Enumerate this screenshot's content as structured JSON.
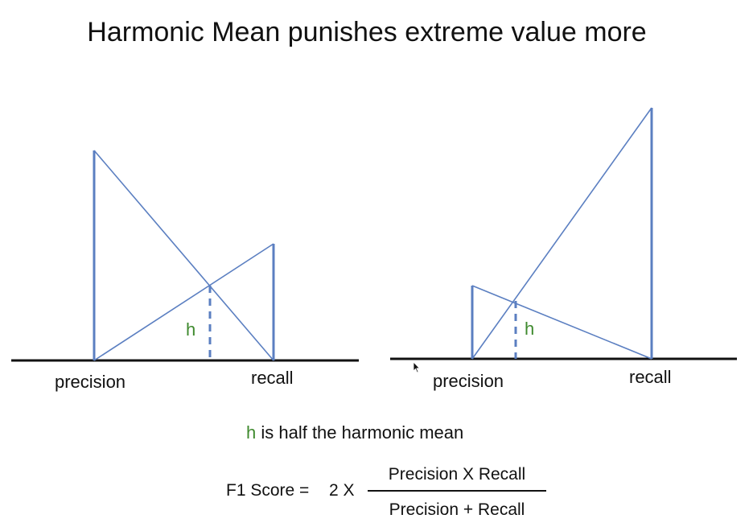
{
  "title": "Harmonic Mean punishes extreme value more",
  "left_diagram": {
    "precision_label": "precision",
    "recall_label": "recall",
    "h_label": "h",
    "precision_value": 2.6,
    "recall_value": 1.45
  },
  "right_diagram": {
    "precision_label": "precision",
    "recall_label": "recall",
    "h_label": "h",
    "precision_value": 0.9,
    "recall_value": 3.1
  },
  "caption": {
    "h": "h",
    "text": " is half the harmonic mean"
  },
  "formula": {
    "lhs": "F1 Score =",
    "factor": "2 X",
    "numerator": "Precision X Recall",
    "denominator": "Precision + Recall"
  },
  "colors": {
    "line": "#5b7fc1",
    "h_label": "#3f8a2e",
    "text": "#111111",
    "baseline": "#111111"
  }
}
